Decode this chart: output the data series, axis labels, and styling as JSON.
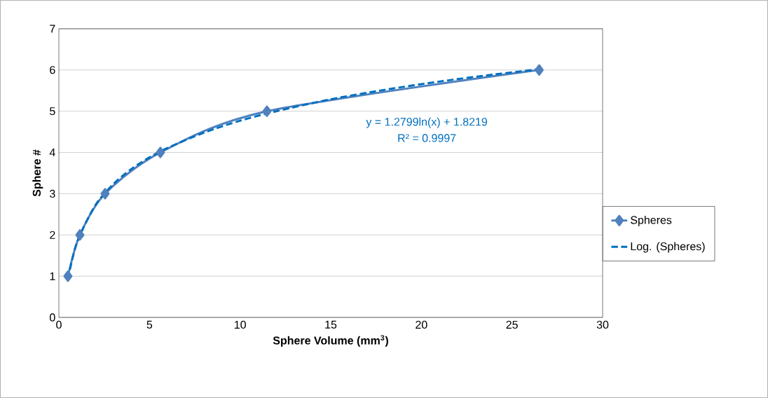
{
  "chart_data": {
    "type": "line",
    "xlabel": "**Sphere Volume (mm$^{3}$)**",
    "ylabel": "**Sphere #**",
    "series": [
      {
        "name": "Spheres",
        "color": "#4f81bd",
        "x": [
          0.5,
          1.16,
          2.55,
          5.6,
          11.48,
          26.5
        ],
        "values": [
          1,
          2,
          3,
          4,
          5,
          6
        ],
        "marker": "diamond"
      },
      {
        "name": "Log. (Spheres)",
        "color": "#0070c0",
        "x": [
          0.5,
          1,
          2,
          3,
          4,
          5,
          6,
          8,
          10,
          12,
          15,
          18,
          21,
          24,
          26.5
        ],
        "values": [
          0.93,
          1.82,
          2.71,
          3.23,
          3.6,
          3.88,
          4.11,
          4.48,
          4.77,
          5.0,
          5.29,
          5.52,
          5.72,
          5.89,
          6.02
        ],
        "marker": "none",
        "line_style": "dashed"
      }
    ],
    "annotations": [
      "y = 1.2799ln(x) + 1.8219",
      "R² = 0.9997"
    ],
    "xlim": [
      0,
      30
    ],
    "ylim": [
      0,
      7
    ],
    "xticks": [
      0,
      5,
      10,
      15,
      20,
      25,
      30
    ],
    "yticks": [
      0,
      1,
      2,
      3,
      4,
      5,
      6,
      7
    ],
    "grid": "y",
    "legend": "right"
  }
}
